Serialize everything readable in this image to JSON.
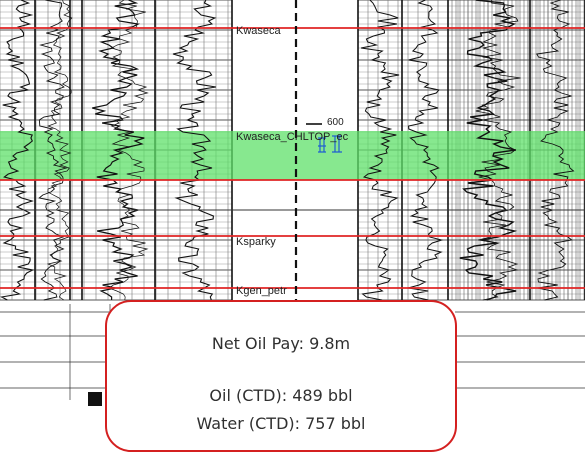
{
  "formations": [
    {
      "id": "kwaseca",
      "label": "Kwaseca"
    },
    {
      "id": "kwaseca_chl",
      "label": "Kwaseca_CHLTOP_ec"
    },
    {
      "id": "ksparky",
      "label": "Ksparky"
    },
    {
      "id": "kgen",
      "label": "Kgen_petr"
    }
  ],
  "depth_marker": "600",
  "pay_zone_color": "#5fe06a",
  "marker_line_color": "#e02424",
  "summary": {
    "net_pay": "Net Oil Pay: 9.8m",
    "oil": "Oil (CTD): 489 bbl",
    "water": "Water (CTD): 757 bbl"
  }
}
